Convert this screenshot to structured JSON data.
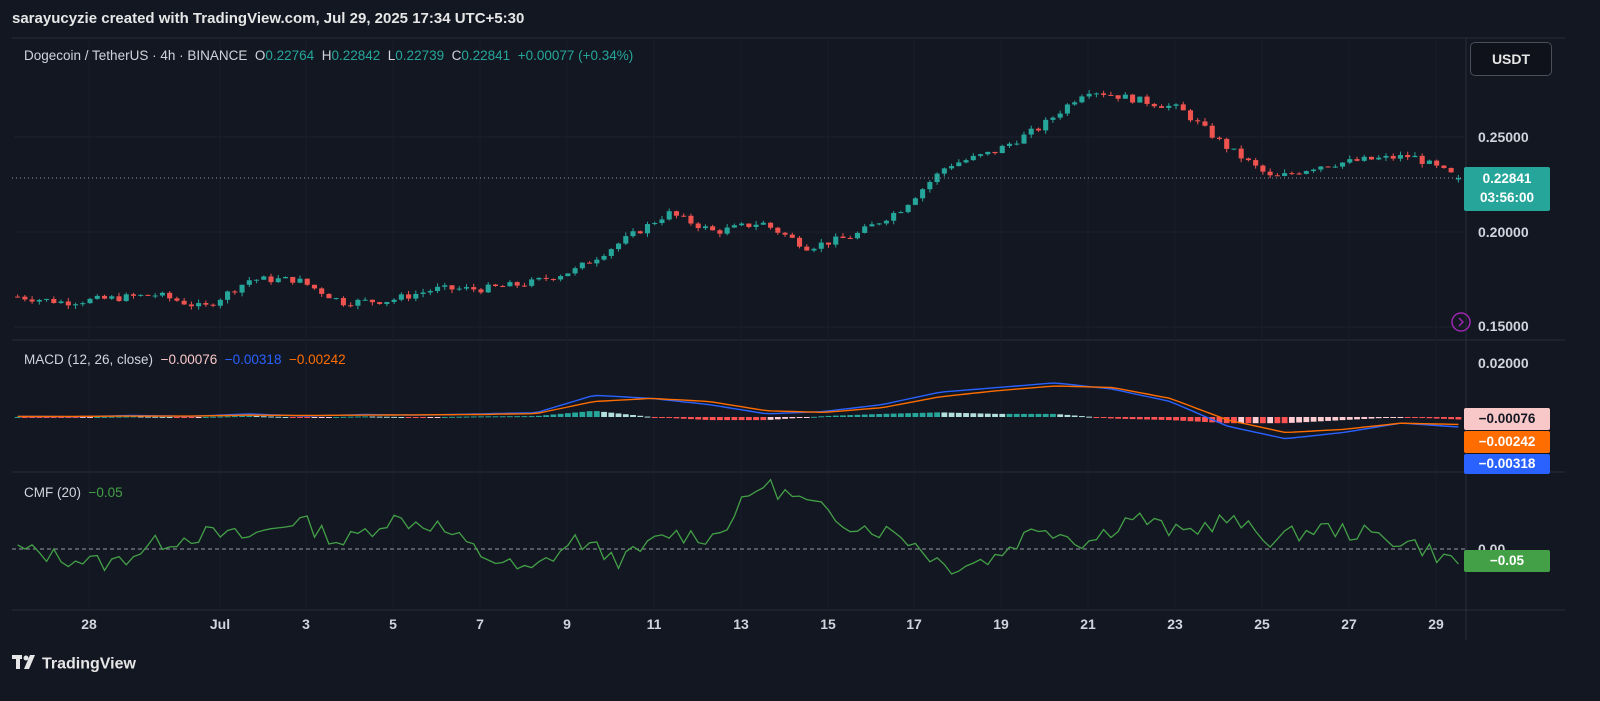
{
  "header": {
    "attribution": "sarayucyzie created with TradingView.com, Jul 29, 2025 17:34 UTC+5:30",
    "currency_button": "USDT",
    "footer_brand": "TradingView"
  },
  "symbol_legend": {
    "title": "Dogecoin / TetherUS · 4h · BINANCE",
    "o_label": "O",
    "o_value": "0.22764",
    "h_label": "H",
    "h_value": "0.22842",
    "l_label": "L",
    "l_value": "0.22739",
    "c_label": "C",
    "c_value": "0.22841",
    "change": "+0.00077 (+0.34%)"
  },
  "macd_legend": {
    "title": "MACD (12, 26, close)",
    "hist": "−0.00076",
    "macd": "−0.00318",
    "signal": "−0.00242"
  },
  "cmf_legend": {
    "title": "CMF (20)",
    "value": "−0.05"
  },
  "price_tag": {
    "value": "0.22841",
    "countdown": "03:56:00"
  },
  "macd_tags": {
    "hist": "−0.00076",
    "signal": "−0.00242",
    "macd": "−0.00318"
  },
  "cmf_tag": "−0.05",
  "axes": {
    "price_ticks": [
      "0.25000",
      "0.20000",
      "0.15000"
    ],
    "macd_ticks": [
      "0.02000"
    ],
    "cmf_ticks": [
      "0.00"
    ],
    "x_ticks": [
      "28",
      "Jul",
      "3",
      "5",
      "7",
      "9",
      "11",
      "13",
      "15",
      "17",
      "19",
      "21",
      "23",
      "25",
      "27",
      "29"
    ]
  },
  "colors": {
    "up": "#26a69a",
    "down": "#ef5350",
    "macd_line": "#2962ff",
    "signal_line": "#ff6d00",
    "cmf_line": "#43a047"
  },
  "chart_data": [
    {
      "type": "candlestick",
      "title": "Dogecoin / TetherUS · 4h · BINANCE",
      "x_range": [
        "Jun 26",
        "Jul 29"
      ],
      "ylim": [
        0.145,
        0.3
      ],
      "key_points": [
        {
          "x": "Jun 26",
          "y": 0.166
        },
        {
          "x": "Jun 28",
          "y": 0.163
        },
        {
          "x": "Jun 30",
          "y": 0.165
        },
        {
          "x": "Jul 1",
          "y": 0.167
        },
        {
          "x": "Jul 2",
          "y": 0.16
        },
        {
          "x": "Jul 3",
          "y": 0.175
        },
        {
          "x": "Jul 4",
          "y": 0.175
        },
        {
          "x": "Jul 5",
          "y": 0.163
        },
        {
          "x": "Jul 6",
          "y": 0.164
        },
        {
          "x": "Jul 7",
          "y": 0.17
        },
        {
          "x": "Jul 8",
          "y": 0.17
        },
        {
          "x": "Jul 9",
          "y": 0.173
        },
        {
          "x": "Jul 10",
          "y": 0.18
        },
        {
          "x": "Jul 11",
          "y": 0.195
        },
        {
          "x": "Jul 12",
          "y": 0.21
        },
        {
          "x": "Jul 13",
          "y": 0.2
        },
        {
          "x": "Jul 14",
          "y": 0.205
        },
        {
          "x": "Jul 15",
          "y": 0.192
        },
        {
          "x": "Jul 16",
          "y": 0.198
        },
        {
          "x": "Jul 17",
          "y": 0.212
        },
        {
          "x": "Jul 18",
          "y": 0.235
        },
        {
          "x": "Jul 19",
          "y": 0.242
        },
        {
          "x": "Jul 20",
          "y": 0.255
        },
        {
          "x": "Jul 21",
          "y": 0.275
        },
        {
          "x": "Jul 22",
          "y": 0.27
        },
        {
          "x": "Jul 23",
          "y": 0.265
        },
        {
          "x": "Jul 24",
          "y": 0.245
        },
        {
          "x": "Jul 25",
          "y": 0.228
        },
        {
          "x": "Jul 26",
          "y": 0.235
        },
        {
          "x": "Jul 27",
          "y": 0.238
        },
        {
          "x": "Jul 28",
          "y": 0.24
        },
        {
          "x": "Jul 29",
          "y": 0.2284
        }
      ],
      "last": {
        "open": 0.22764,
        "high": 0.22842,
        "low": 0.22739,
        "close": 0.22841
      }
    },
    {
      "type": "line",
      "title": "MACD (12, 26, close)",
      "series": [
        {
          "name": "MACD",
          "values": [
            0.0002,
            0.0001,
            0.0005,
            0.0002,
            0.001,
            0.0003,
            0.0008,
            0.0006,
            0.001,
            0.0014,
            0.007,
            0.006,
            0.004,
            0.001,
            0.0018,
            0.004,
            0.008,
            0.0095,
            0.011,
            0.009,
            0.005,
            -0.003,
            -0.007,
            -0.005,
            -0.002,
            -0.0032
          ]
        },
        {
          "name": "Signal",
          "values": [
            0.0002,
            0.0002,
            0.0003,
            0.0003,
            0.0006,
            0.0005,
            0.0006,
            0.0007,
            0.0008,
            0.0011,
            0.005,
            0.006,
            0.005,
            0.002,
            0.0015,
            0.003,
            0.0065,
            0.0085,
            0.01,
            0.0095,
            0.006,
            -0.001,
            -0.005,
            -0.004,
            -0.002,
            -0.0024
          ]
        }
      ],
      "histogram_last": -0.00076,
      "ylim": [
        -0.02,
        0.02
      ]
    },
    {
      "type": "line",
      "title": "CMF (20)",
      "series": [
        {
          "name": "CMF (20)",
          "values": [
            0.0,
            -0.03,
            -0.05,
            0.02,
            0.05,
            0.04,
            0.1,
            0.02,
            0.1,
            0.08,
            -0.02,
            -0.08,
            0.03,
            -0.04,
            0.05,
            0.04,
            0.22,
            0.15,
            0.08,
            0.05,
            -0.06,
            -0.03,
            0.08,
            0.02,
            0.11,
            0.05,
            0.1,
            0.03,
            0.07,
            0.05,
            0.02,
            -0.05
          ]
        }
      ],
      "ylim": [
        -0.25,
        0.28
      ],
      "last": -0.05
    }
  ]
}
